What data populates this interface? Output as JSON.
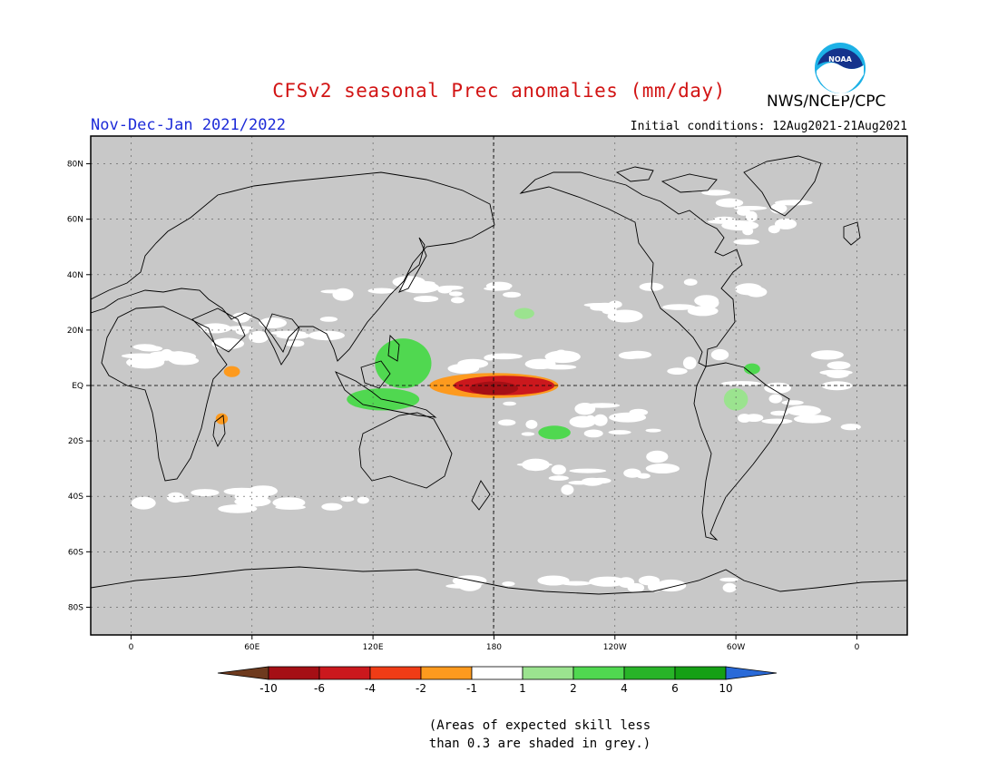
{
  "title": "CFSv2 seasonal Prec anomalies (mm/day)",
  "agency": "NWS/NCEP/CPC",
  "logo_text": "NOAA",
  "season": "Nov-Dec-Jan 2021/2022",
  "initial_conditions": "Initial conditions: 12Aug2021-21Aug2021",
  "map": {
    "lat_labels": [
      "80N",
      "60N",
      "40N",
      "20N",
      "EQ",
      "20S",
      "40S",
      "60S",
      "80S"
    ],
    "lat_values": [
      80,
      60,
      40,
      20,
      0,
      -20,
      -40,
      -60,
      -80
    ],
    "lon_labels": [
      "0",
      "60E",
      "120E",
      "180",
      "120W",
      "60W",
      "0"
    ],
    "lon_values": [
      0,
      60,
      120,
      180,
      240,
      300,
      360
    ],
    "lon_range": [
      -20,
      385
    ],
    "lat_range": [
      -90,
      90
    ],
    "grey_color": "#c8c8c8"
  },
  "colorbar": {
    "labels": [
      "-10",
      "-6",
      "-4",
      "-2",
      "-1",
      "1",
      "2",
      "4",
      "6",
      "10"
    ],
    "colors": [
      "#6e3a1e",
      "#a50f15",
      "#cb181d",
      "#f03c16",
      "#fd9a1e",
      "#ffffff",
      "#9be38f",
      "#50d850",
      "#28b428",
      "#15a015",
      "#2a6ad8"
    ]
  },
  "anomalies": [
    {
      "lon": 180,
      "lat": 0,
      "rx": 32,
      "ry": 4.5,
      "level": "-2"
    },
    {
      "lon": 185,
      "lat": 0,
      "rx": 25,
      "ry": 3.5,
      "level": "-4"
    },
    {
      "lon": 180,
      "lat": -1,
      "rx": 12,
      "ry": 2.5,
      "level": "-6"
    },
    {
      "lon": 135,
      "lat": 8,
      "rx": 14,
      "ry": 9,
      "level": "2"
    },
    {
      "lon": 125,
      "lat": -5,
      "rx": 18,
      "ry": 4,
      "level": "2"
    },
    {
      "lon": 210,
      "lat": -17,
      "rx": 8,
      "ry": 2.5,
      "level": "2"
    },
    {
      "lon": 195,
      "lat": 26,
      "rx": 5,
      "ry": 2,
      "level": "1"
    },
    {
      "lon": 308,
      "lat": 6,
      "rx": 4,
      "ry": 2,
      "level": "2"
    },
    {
      "lon": 300,
      "lat": -5,
      "rx": 6,
      "ry": 4,
      "level": "1"
    },
    {
      "lon": 50,
      "lat": 5,
      "rx": 4,
      "ry": 2,
      "level": "-2"
    },
    {
      "lon": 45,
      "lat": -12,
      "rx": 3,
      "ry": 2,
      "level": "-2"
    },
    {
      "lon": 178,
      "lat": 10,
      "rx": 3,
      "ry": 1,
      "level": "-1"
    }
  ],
  "note_line1": "(Areas of expected skill less",
  "note_line2": "than 0.3 are shaded in grey.)"
}
